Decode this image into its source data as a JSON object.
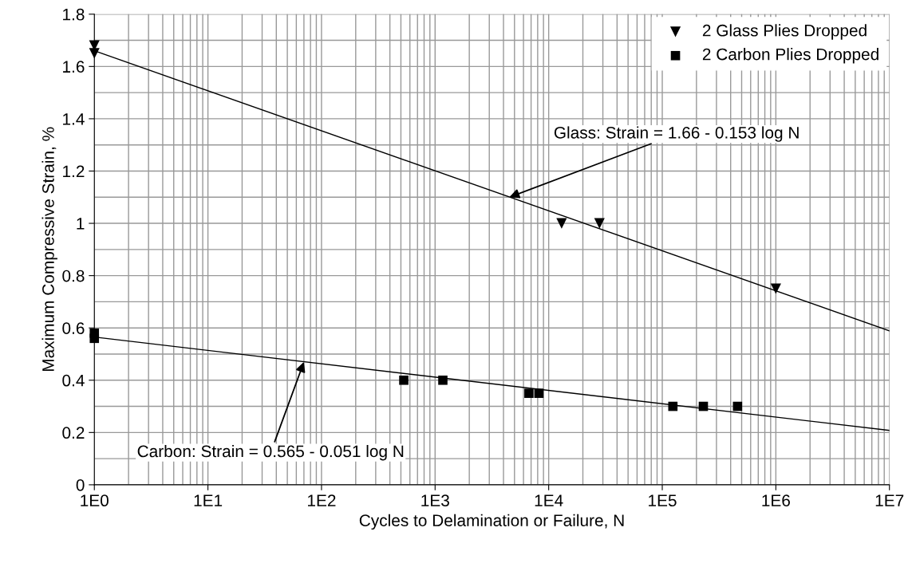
{
  "chart_data": {
    "type": "scatter",
    "xlabel": "Cycles to Delamination or Failure, N",
    "ylabel": "Maximum Compressive Strain, %",
    "log": "x",
    "grid": true,
    "legend": "top right",
    "xlim": [
      1,
      10000000
    ],
    "xticks": [
      {
        "value": 1,
        "label": "1E0"
      },
      {
        "value": 10,
        "label": "1E1"
      },
      {
        "value": 100,
        "label": "1E2"
      },
      {
        "value": 1000,
        "label": "1E3"
      },
      {
        "value": 10000,
        "label": "1E4"
      },
      {
        "value": 100000,
        "label": "1E5"
      },
      {
        "value": 1000000,
        "label": "1E6"
      },
      {
        "value": 10000000,
        "label": "1E7"
      }
    ],
    "ylim": [
      0,
      1.8
    ],
    "yticks": [
      0,
      0.2,
      0.4,
      0.6,
      0.8,
      1,
      1.2,
      1.4,
      1.6,
      1.8
    ],
    "series": [
      {
        "name": "2 Glass Plies Dropped",
        "marker": "triangle",
        "color": "#000000",
        "x": [
          1,
          1,
          13000,
          28000,
          1000000
        ],
        "values": [
          1.68,
          1.65,
          1.0,
          1.0,
          0.75
        ]
      },
      {
        "name": "2 Carbon Plies Dropped",
        "marker": "square",
        "color": "#000000",
        "x": [
          1,
          1,
          530,
          1170,
          6700,
          8200,
          124000,
          230000,
          460000
        ],
        "values": [
          0.58,
          0.56,
          0.4,
          0.4,
          0.35,
          0.35,
          0.3,
          0.3,
          0.3
        ]
      },
      {
        "type": "line",
        "marker": "none",
        "color": "#000000",
        "x": [
          1,
          10000000
        ],
        "values": [
          1.66,
          0.589
        ]
      },
      {
        "type": "line",
        "marker": "none",
        "color": "#000000",
        "x": [
          1,
          10000000
        ],
        "values": [
          0.565,
          0.208
        ]
      }
    ],
    "annotations": [
      {
        "text": "Glass: Strain = 1.66 - 0.153 log N",
        "x": 4500,
        "y": 1.1
      },
      {
        "text": "Carbon: Strain = 0.565 - 0.051 log N",
        "x": 70,
        "y": 0.47
      }
    ]
  }
}
